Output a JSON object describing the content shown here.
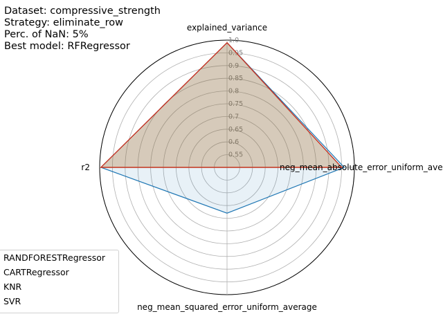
{
  "info": {
    "dataset": "Dataset: compressive_strength",
    "strategy": "Strategy: eliminate_row",
    "nan": "Perc. of NaN: 5%",
    "best": "Best model: RFRegressor"
  },
  "chart_data": {
    "type": "radar",
    "axes": [
      "explained_variance",
      "neg_mean_absolute_error_uniform_average",
      "neg_mean_squared_error_uniform_average",
      "r2"
    ],
    "rlim": [
      0.5,
      1.0
    ],
    "rticks": [
      "0.55",
      "0.6",
      "0.65",
      "0.7",
      "0.75",
      "0.8",
      "0.85",
      "0.9",
      "0.95",
      "1.0"
    ],
    "grid": true,
    "legend_position": "bottom-left",
    "series": [
      {
        "name": "RANDFORESTRegressor",
        "color": "#1f77b4",
        "values": [
          0.99,
          0.96,
          0.68,
          0.995
        ]
      },
      {
        "name": "CARTRegressor",
        "color": "#ff7f0e",
        "values": [
          0.99,
          0.95,
          0.5,
          0.995
        ]
      },
      {
        "name": "KNR",
        "color": "#2ca02c",
        "values": [
          0.99,
          0.95,
          0.5,
          0.995
        ]
      },
      {
        "name": "SVR",
        "color": "#d62728",
        "values": [
          0.99,
          0.95,
          0.5,
          0.995
        ]
      }
    ]
  }
}
